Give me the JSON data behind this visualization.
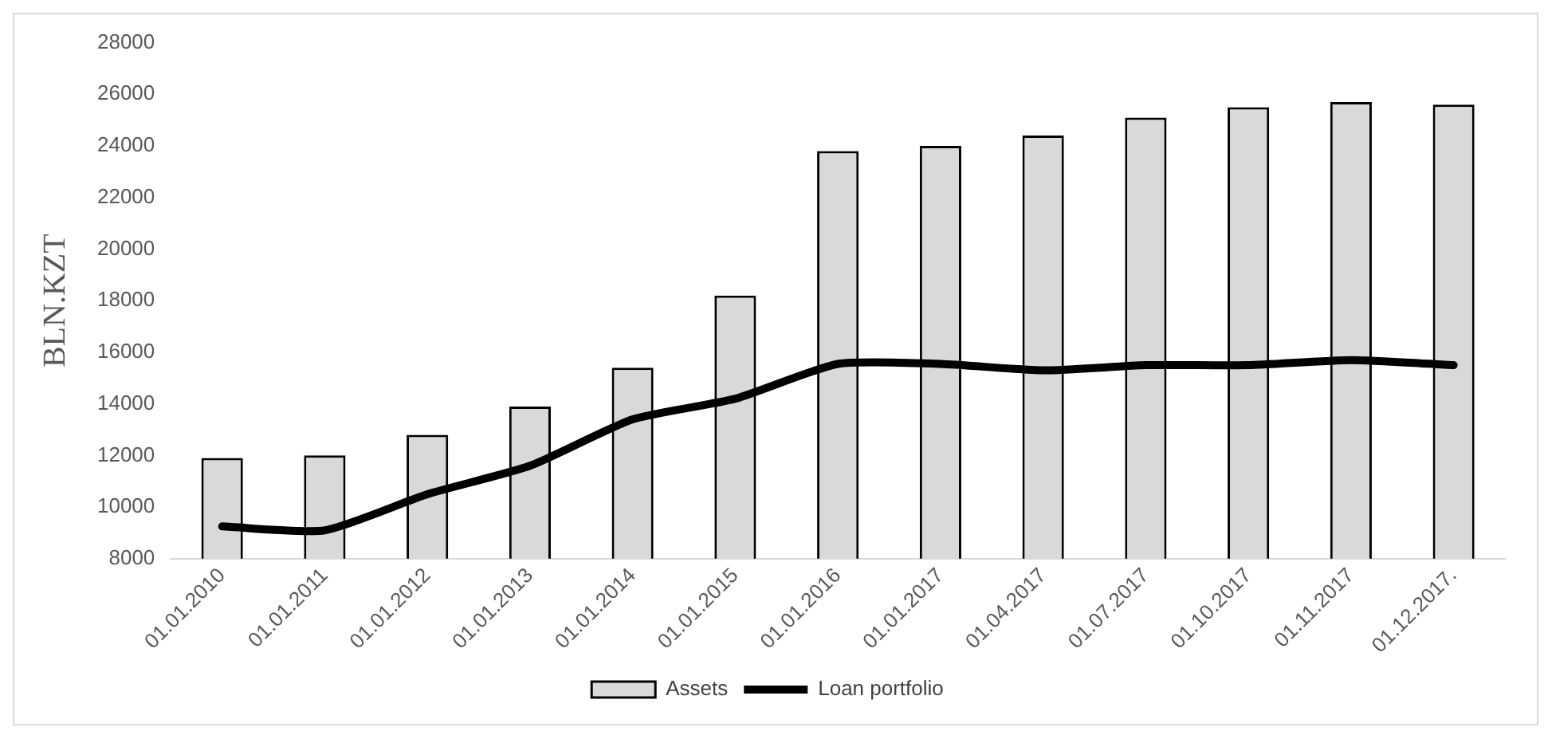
{
  "chart_data": {
    "type": "bar",
    "ylabel": "BLN.KZT",
    "categories": [
      "01.01.2010",
      "01.01.2011",
      "01.01.2012",
      "01.01.2013",
      "01.01.2014",
      "01.01.2015",
      "01.01.2016",
      "01.01.2017",
      "01.04.2017",
      "01.07.2017",
      "01.10.2017",
      "01.11.2017",
      "01.12.2017."
    ],
    "series": [
      {
        "name": "Assets",
        "color": "#d9d9d9",
        "values": [
          11900,
          12000,
          12800,
          13900,
          15400,
          18200,
          23800,
          24000,
          24400,
          25100,
          25500,
          25700,
          25600
        ]
      },
      {
        "name": "Loan portfolio",
        "type": "line",
        "color": "#000000",
        "values": [
          9250,
          9100,
          10500,
          11600,
          13400,
          14200,
          15550,
          15550,
          15300,
          15500,
          15500,
          15700,
          15500
        ]
      }
    ],
    "ylim": [
      8000,
      28000
    ],
    "yticks": [
      8000,
      10000,
      12000,
      14000,
      16000,
      18000,
      20000,
      22000,
      24000,
      26000,
      28000
    ],
    "grid": false,
    "legend": "bottom",
    "marker": "none",
    "line_style": "solid"
  }
}
